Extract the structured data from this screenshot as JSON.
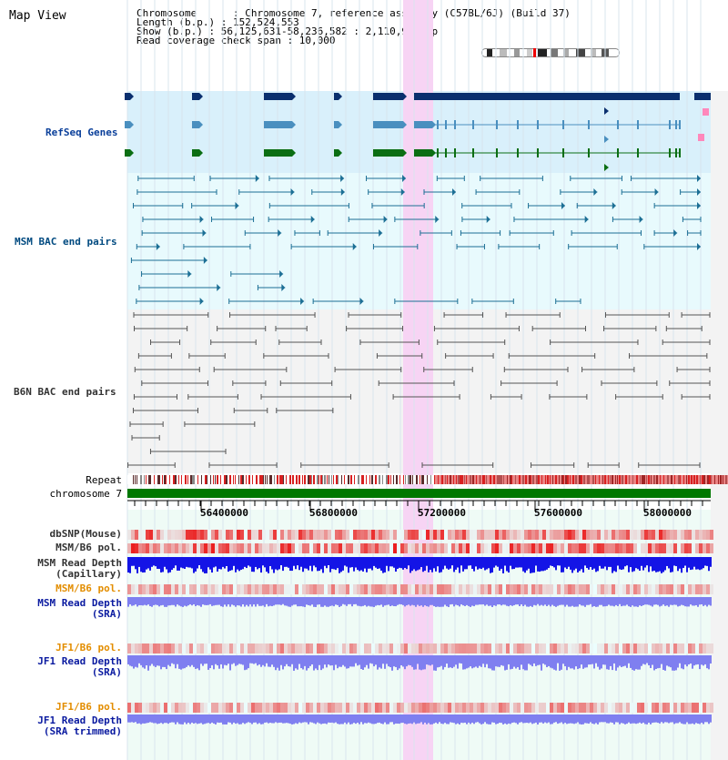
{
  "title": "Map View",
  "info": {
    "chromosome_line": "Chromosome      : Chromosome 7, reference assembly (C57BL/6J) (Build 37)",
    "length_line": "Length (b.p.) : 152,524,553",
    "show_line": "Show (b.p.) : 56,125,631-58,236,582 : 2,110,952 bp",
    "coverage_line": "Read coverage check span : 10,000"
  },
  "tracks": {
    "refseq": "RefSeq Genes",
    "msm_bac": "MSM BAC end pairs",
    "b6n_bac": "B6N BAC end pairs",
    "repeat": "Repeat",
    "chromosome": "chromosome 7",
    "dbsnp": "dbSNP(Mouse)",
    "msm_b6_pol": "MSM/B6 pol.",
    "msm_cap_1": "MSM Read Depth",
    "msm_cap_2": "(Capillary)",
    "msm_b6_pol2": "MSM/B6 pol.",
    "msm_sra_1": "MSM Read Depth",
    "msm_sra_2": "(SRA)",
    "jf1_b6_pol": "JF1/B6 pol.",
    "jf1_sra_1": "JF1 Read Depth",
    "jf1_sra_2": "(SRA)",
    "jf1_b6_pol2": "JF1/B6 pol.",
    "jf1_trim_1": "JF1 Read Depth",
    "jf1_trim_2": "(SRA trimmed)"
  },
  "axis_ticks": [
    "56400000",
    "56800000",
    "57200000",
    "57600000",
    "58000000"
  ],
  "colors": {
    "highlight": "#f7d4f4",
    "refseq_bg": "#d9f0fb",
    "msm_bg": "#e8fafd",
    "b6n_bg": "#f3f3f3",
    "lower_bg": "#effbf6",
    "gene_dark": "#0a2f6e",
    "gene_mid": "#4a8fbf",
    "gene_green": "#0b6e13",
    "msm_pair": "#1c6f95",
    "b6n_pair": "#555555",
    "depth_blue": "#1414e6",
    "depth_light": "#7f7ff0",
    "snp_red": "#e83030",
    "chrom_green": "#007800"
  }
}
